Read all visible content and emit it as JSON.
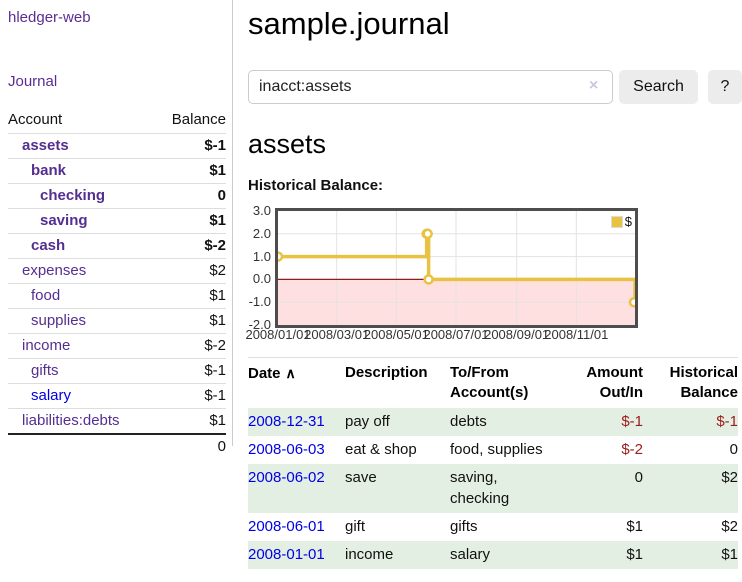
{
  "sidebar": {
    "brand": "hledger-web",
    "nav": {
      "journal_label": "Journal"
    },
    "table": {
      "account_header": "Account",
      "balance_header": "Balance",
      "accounts": [
        {
          "label": "assets",
          "indent": 0,
          "bold": true,
          "link_color": "purple",
          "balance": "$-1",
          "negative": "strong"
        },
        {
          "label": "bank",
          "indent": 1,
          "bold": true,
          "link_color": "purple",
          "balance": "$1",
          "negative": null
        },
        {
          "label": "checking",
          "indent": 2,
          "bold": true,
          "link_color": "purple",
          "balance": "0",
          "negative": null
        },
        {
          "label": "saving",
          "indent": 2,
          "bold": true,
          "link_color": "purple",
          "balance": "$1",
          "negative": null
        },
        {
          "label": "cash",
          "indent": 1,
          "bold": true,
          "link_color": "purple",
          "balance": "$-2",
          "negative": "strong"
        },
        {
          "label": "expenses",
          "indent": 0,
          "bold": false,
          "link_color": "purple",
          "balance": "$2",
          "negative": null
        },
        {
          "label": "food",
          "indent": 1,
          "bold": false,
          "link_color": "purple",
          "balance": "$1",
          "negative": null
        },
        {
          "label": "supplies",
          "indent": 1,
          "bold": false,
          "link_color": "purple",
          "balance": "$1",
          "negative": null
        },
        {
          "label": "income",
          "indent": 0,
          "bold": false,
          "link_color": "purple",
          "balance": "$-2",
          "negative": "soft"
        },
        {
          "label": "gifts",
          "indent": 1,
          "bold": false,
          "link_color": "purple",
          "balance": "$-1",
          "negative": "soft"
        },
        {
          "label": "salary",
          "indent": 1,
          "bold": false,
          "link_color": "blue",
          "balance": "$-1",
          "negative": "soft"
        },
        {
          "label": "liabilities:debts",
          "indent": 0,
          "bold": false,
          "link_color": "purple",
          "balance": "$1",
          "negative": null
        }
      ],
      "total": "0"
    }
  },
  "main": {
    "title": "sample.journal",
    "search": {
      "value": "inacct:assets",
      "placeholder": "",
      "clear_icon": "×",
      "button_label": "Search",
      "help_label": "?"
    },
    "account_heading": "assets",
    "chart_heading": "Historical Balance:"
  },
  "chart_data": {
    "type": "line",
    "title": "Historical Balance",
    "step": true,
    "series": [
      {
        "name": "$",
        "color": "#e8c240",
        "points": [
          [
            "2008-01-01",
            1
          ],
          [
            "2008-06-01",
            2
          ],
          [
            "2008-06-02",
            2
          ],
          [
            "2008-06-03",
            0
          ],
          [
            "2008-12-31",
            -1
          ]
        ]
      }
    ],
    "x_range": [
      "2008-01-01",
      "2008-12-31"
    ],
    "y_range": [
      -2,
      3
    ],
    "y_ticks": [
      "3.0",
      "2.0",
      "1.0",
      "0.0",
      "-1.0",
      "-2.0"
    ],
    "x_ticks": [
      {
        "date": "2008-01-01",
        "label": "2008/01/01"
      },
      {
        "date": "2008-03-01",
        "label": "2008/03/01"
      },
      {
        "date": "2008-05-01",
        "label": "2008/05/01"
      },
      {
        "date": "2008-07-01",
        "label": "2008/07/01"
      },
      {
        "date": "2008-09-01",
        "label": "2008/09/01"
      },
      {
        "date": "2008-11-01",
        "label": "2008/11/01"
      }
    ],
    "legend": {
      "position": "top-right",
      "label": "$"
    },
    "grid": true,
    "colors": {
      "line": "#e8c240",
      "marker_fill": "#ffffff",
      "negative_region": "rgba(255,0,0,0.12)",
      "zero_line": "#8b1f1f",
      "gridline": "#e3e3e3",
      "border": "#4d4d4d"
    }
  },
  "register": {
    "headers": {
      "date": "Date",
      "description": "Description",
      "accounts": "To/From Account(s)",
      "amount": "Amount Out/In",
      "balance": "Historical Balance"
    },
    "sort_icon": "∧",
    "rows": [
      {
        "date": "2008-12-31",
        "description": "pay off",
        "accounts": "debts",
        "amount": "$-1",
        "balance": "$-1",
        "amount_neg": true,
        "balance_neg": true
      },
      {
        "date": "2008-06-03",
        "description": "eat & shop",
        "accounts": "food, supplies",
        "amount": "$-2",
        "balance": "0",
        "amount_neg": true,
        "balance_neg": false
      },
      {
        "date": "2008-06-02",
        "description": "save",
        "accounts": "saving, checking",
        "amount": "0",
        "balance": "$2",
        "amount_neg": false,
        "balance_neg": false
      },
      {
        "date": "2008-06-01",
        "description": "gift",
        "accounts": "gifts",
        "amount": "$1",
        "balance": "$2",
        "amount_neg": false,
        "balance_neg": false
      },
      {
        "date": "2008-01-01",
        "description": "income",
        "accounts": "salary",
        "amount": "$1",
        "balance": "$1",
        "amount_neg": false,
        "balance_neg": false
      }
    ]
  },
  "colors": {
    "link_purple": "#552e91",
    "link_blue": "#0000e8",
    "negative_strong": "#a31818",
    "negative_soft": "#c56f6f",
    "row_green": "#e3efe3",
    "accent_gold": "#e8c240"
  }
}
